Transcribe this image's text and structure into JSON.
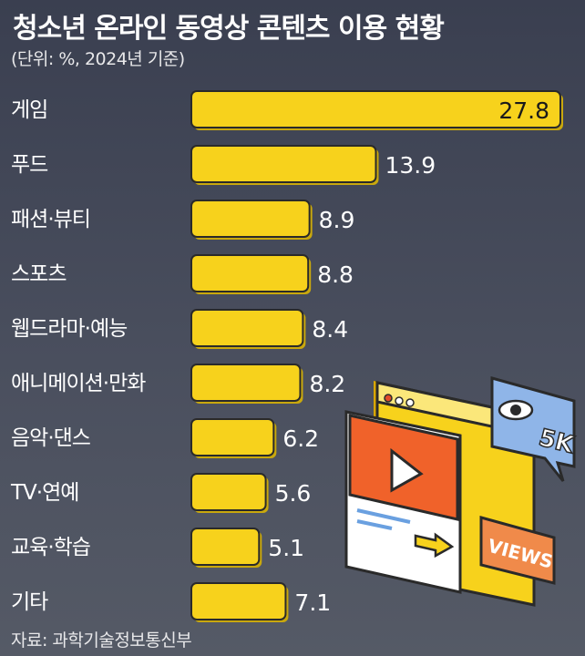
{
  "title": "청소년 온라인 동영상 콘텐츠 이용 현황",
  "subtitle": "(단위: %, 2024년 기준)",
  "source": "자료: 과학기술정보통신부",
  "chart_data": {
    "type": "bar",
    "orientation": "horizontal",
    "categories": [
      "게임",
      "푸드",
      "패션·뷰티",
      "스포츠",
      "웹드라마·예능",
      "애니메이션·만화",
      "음악·댄스",
      "TV·연예",
      "교육·학습",
      "기타"
    ],
    "values": [
      27.8,
      13.9,
      8.9,
      8.8,
      8.4,
      8.2,
      6.2,
      5.6,
      5.1,
      7.1
    ],
    "value_labels": [
      "27.8",
      "13.9",
      "8.9",
      "8.8",
      "8.4",
      "8.2",
      "6.2",
      "5.6",
      "5.1",
      "7.1"
    ],
    "xlim": [
      0,
      27.8
    ],
    "bar_color": "#f7d21c",
    "grid": false,
    "legend": "none"
  },
  "decoration": {
    "icon": "video-player-views-illustration-icon",
    "views_badge": "5K",
    "views_tag": "VIEWS"
  }
}
